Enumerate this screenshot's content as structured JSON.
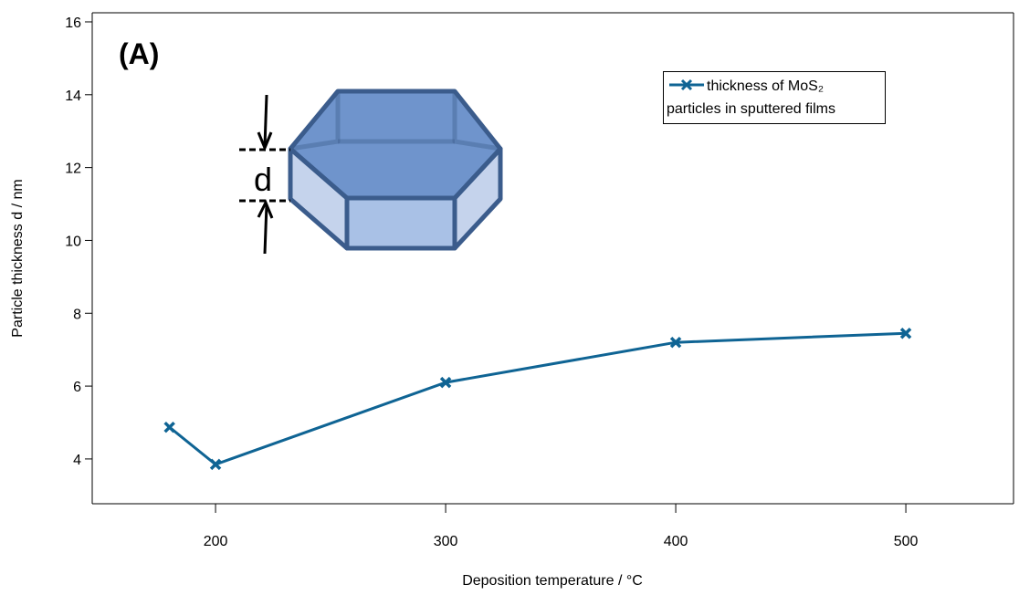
{
  "chart_data": {
    "type": "line",
    "annotations": [
      "(A)",
      "d"
    ],
    "x_label": "Deposition temperature / °C",
    "y_label": "Particle thickness d / nm",
    "x": [
      180,
      200,
      300,
      400,
      500
    ],
    "series": [
      {
        "name": "thickness of MoS₂ particles in sputtered films",
        "color": "#0f6494",
        "values": [
          4.87,
          3.85,
          6.1,
          7.2,
          7.45
        ]
      }
    ],
    "xlim": [
      146.4,
      546.8
    ],
    "xticks": [
      200,
      300,
      400,
      500
    ],
    "ylim": [
      2.77,
      16.25
    ],
    "yticks": [
      4,
      6,
      8,
      10,
      12,
      14,
      16
    ],
    "legend": "upper right"
  }
}
